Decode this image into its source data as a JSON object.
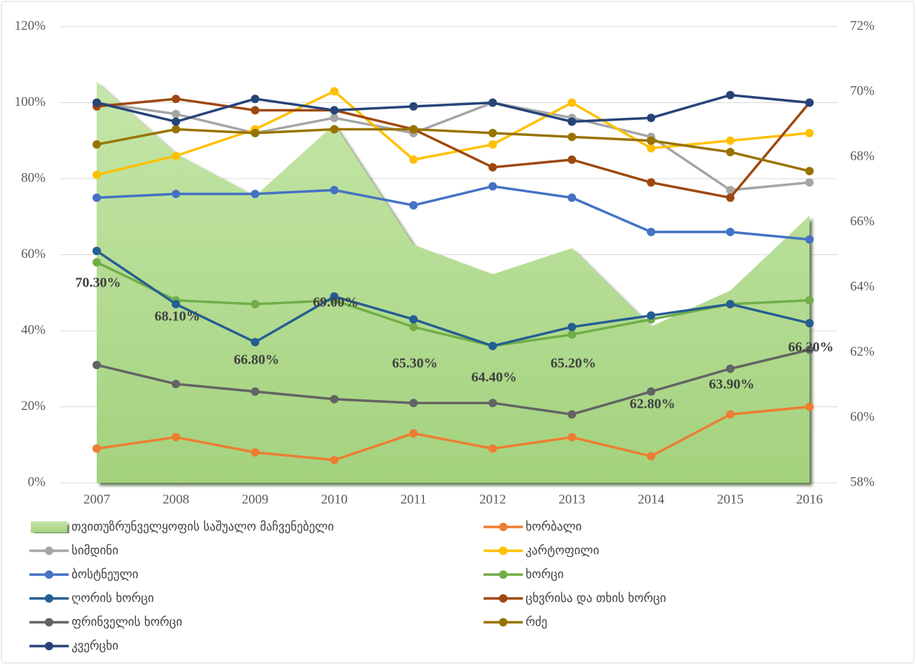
{
  "chart_data": {
    "type": "line",
    "categories": [
      "2007",
      "2008",
      "2009",
      "2010",
      "2011",
      "2012",
      "2013",
      "2014",
      "2015",
      "2016"
    ],
    "ylim": [
      0,
      120
    ],
    "yticks": [
      {
        "value": 0,
        "label": "0%"
      },
      {
        "value": 20,
        "label": "20%"
      },
      {
        "value": 40,
        "label": "40%"
      },
      {
        "value": 60,
        "label": "60%"
      },
      {
        "value": 80,
        "label": "80%"
      },
      {
        "value": 100,
        "label": "100%"
      },
      {
        "value": 120,
        "label": "120%"
      }
    ],
    "y2lim": [
      58,
      72
    ],
    "y2ticks": [
      {
        "value": 58,
        "label": "58%"
      },
      {
        "value": 60,
        "label": "60%"
      },
      {
        "value": 62,
        "label": "62%"
      },
      {
        "value": 64,
        "label": "64%"
      },
      {
        "value": 66,
        "label": "66%"
      },
      {
        "value": 68,
        "label": "68%"
      },
      {
        "value": 70,
        "label": "70%"
      },
      {
        "value": 72,
        "label": "72%"
      }
    ],
    "grid": true,
    "legend": "bottom",
    "series": [
      {
        "name": "თვითუზრუნველყოფის საშუალო მაჩვენებელი",
        "type": "area",
        "axis": "y2",
        "color": "#a9d18e",
        "values": [
          70.3,
          68.1,
          66.8,
          69.0,
          65.3,
          64.4,
          65.2,
          62.8,
          63.9,
          66.2
        ],
        "value_labels": [
          "70.30%",
          "68.10%",
          "66.80%",
          "69.00%",
          "65.30%",
          "64.40%",
          "65.20%",
          "62.80%",
          "63.90%",
          "66.20%"
        ]
      },
      {
        "name": "ხორბალი",
        "color": "#ed7d31",
        "values": [
          9,
          12,
          8,
          6,
          13,
          9,
          12,
          7,
          18,
          20
        ]
      },
      {
        "name": "სიმდინი",
        "color": "#a5a5a5",
        "values": [
          100,
          97,
          92,
          96,
          92,
          100,
          96,
          91,
          77,
          79
        ]
      },
      {
        "name": "კარტოფილი",
        "color": "#ffc000",
        "values": [
          81,
          86,
          93,
          103,
          85,
          89,
          100,
          88,
          90,
          92
        ]
      },
      {
        "name": "ბოსტნეული",
        "color": "#4472c4",
        "values": [
          75,
          76,
          76,
          77,
          73,
          78,
          75,
          66,
          66,
          64
        ]
      },
      {
        "name": "ხორცი",
        "color": "#70ad47",
        "values": [
          58,
          48,
          47,
          48,
          41,
          36,
          39,
          43,
          47,
          48
        ]
      },
      {
        "name": "ღორის ხორცი",
        "color": "#255e91",
        "values": [
          61,
          47,
          37,
          49,
          43,
          36,
          41,
          44,
          47,
          42
        ]
      },
      {
        "name": "ცხვრისა და თხის ხორცი",
        "color": "#9e480e",
        "values": [
          99,
          101,
          98,
          98,
          93,
          83,
          85,
          79,
          75,
          100
        ]
      },
      {
        "name": "ფრინველის ხორცი",
        "color": "#636363",
        "values": [
          31,
          26,
          24,
          22,
          21,
          21,
          18,
          24,
          30,
          35
        ]
      },
      {
        "name": "რძე",
        "color": "#997300",
        "values": [
          89,
          93,
          92,
          93,
          93,
          92,
          91,
          90,
          87,
          82
        ]
      },
      {
        "name": "კვერცხი",
        "color": "#264478",
        "values": [
          100,
          95,
          101,
          98,
          99,
          100,
          95,
          96,
          102,
          100
        ]
      }
    ]
  }
}
